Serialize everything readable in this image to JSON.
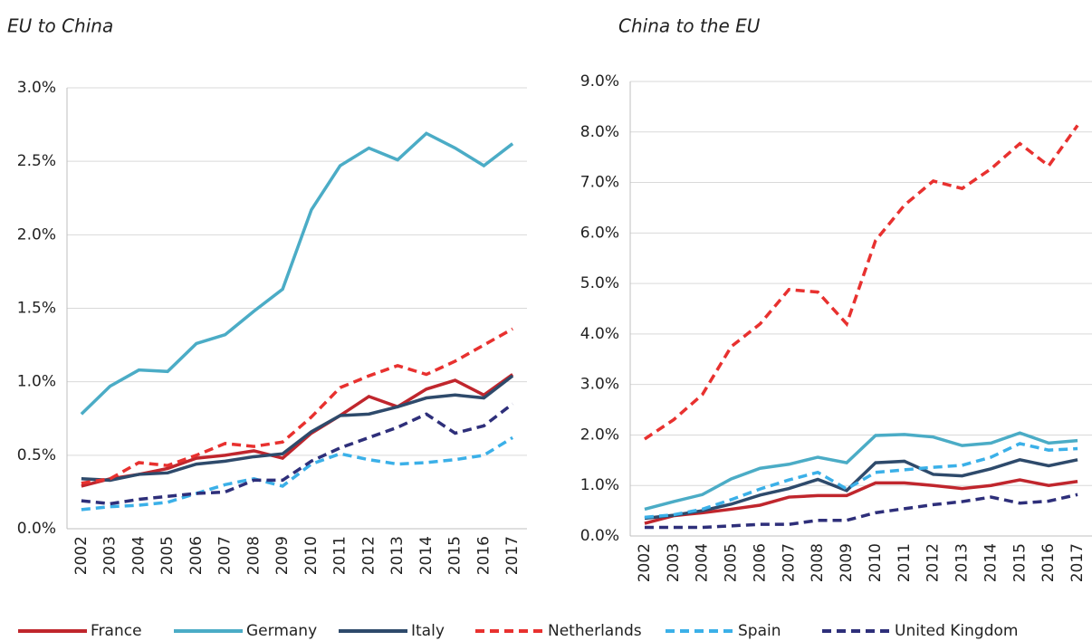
{
  "chart_data": [
    {
      "type": "line",
      "title": "EU to China",
      "categories": [
        "2002",
        "2003",
        "2004",
        "2005",
        "2006",
        "2007",
        "2008",
        "2009",
        "2010",
        "2011",
        "2012",
        "2013",
        "2014",
        "2015",
        "2016",
        "2017"
      ],
      "ylim": [
        0,
        3.0
      ],
      "yticks": [
        {
          "value": 0,
          "label": "0.0%"
        },
        {
          "value": 0.5,
          "label": "0.5%"
        },
        {
          "value": 1.0,
          "label": "1.0%"
        },
        {
          "value": 1.5,
          "label": "1.5%"
        },
        {
          "value": 2.0,
          "label": "2.0%"
        },
        {
          "value": 2.5,
          "label": "2.5%"
        },
        {
          "value": 3.0,
          "label": "3.0%"
        }
      ],
      "grid": true,
      "series": [
        {
          "name": "France",
          "color": "#c0262d",
          "dashed": false,
          "values": [
            0.29,
            0.34,
            0.37,
            0.41,
            0.48,
            0.5,
            0.53,
            0.48,
            0.65,
            0.77,
            0.9,
            0.83,
            0.95,
            1.01,
            0.91,
            1.05
          ]
        },
        {
          "name": "Germany",
          "color": "#4bacc6",
          "dashed": false,
          "values": [
            0.78,
            0.97,
            1.08,
            1.07,
            1.26,
            1.32,
            1.48,
            1.63,
            2.17,
            2.47,
            2.59,
            2.51,
            2.69,
            2.59,
            2.47,
            2.62
          ]
        },
        {
          "name": "Italy",
          "color": "#2e4a6b",
          "dashed": false,
          "values": [
            0.34,
            0.33,
            0.37,
            0.38,
            0.44,
            0.46,
            0.49,
            0.51,
            0.66,
            0.77,
            0.78,
            0.83,
            0.89,
            0.91,
            0.89,
            1.04
          ]
        },
        {
          "name": "Netherlands",
          "color": "#e8312f",
          "dashed": true,
          "values": [
            0.31,
            0.34,
            0.45,
            0.43,
            0.5,
            0.58,
            0.56,
            0.59,
            0.76,
            0.96,
            1.04,
            1.11,
            1.05,
            1.14,
            1.25,
            1.36
          ]
        },
        {
          "name": "Spain",
          "color": "#3bb0e8",
          "dashed": true,
          "values": [
            0.13,
            0.15,
            0.16,
            0.18,
            0.24,
            0.3,
            0.34,
            0.29,
            0.44,
            0.51,
            0.47,
            0.44,
            0.45,
            0.47,
            0.5,
            0.62
          ]
        },
        {
          "name": "United Kingdom",
          "color": "#2e2f7a",
          "dashed": true,
          "values": [
            0.19,
            0.17,
            0.2,
            0.22,
            0.24,
            0.25,
            0.33,
            0.33,
            0.46,
            0.55,
            0.62,
            0.69,
            0.78,
            0.65,
            0.7,
            0.85
          ]
        }
      ]
    },
    {
      "type": "line",
      "title": "China to the EU",
      "categories": [
        "2002",
        "2003",
        "2004",
        "2005",
        "2006",
        "2007",
        "2008",
        "2009",
        "2010",
        "2011",
        "2012",
        "2013",
        "2014",
        "2015",
        "2016",
        "2017"
      ],
      "ylim": [
        0,
        9.0
      ],
      "yticks": [
        {
          "value": 0,
          "label": "0.0%"
        },
        {
          "value": 1,
          "label": "1.0%"
        },
        {
          "value": 2,
          "label": "2.0%"
        },
        {
          "value": 3,
          "label": "3.0%"
        },
        {
          "value": 4,
          "label": "4.0%"
        },
        {
          "value": 5,
          "label": "5.0%"
        },
        {
          "value": 6,
          "label": "6.0%"
        },
        {
          "value": 7,
          "label": "7.0%"
        },
        {
          "value": 8,
          "label": "8.0%"
        },
        {
          "value": 9,
          "label": "9.0%"
        }
      ],
      "grid": true,
      "series": [
        {
          "name": "France",
          "color": "#c0262d",
          "dashed": false,
          "values": [
            0.25,
            0.4,
            0.46,
            0.53,
            0.61,
            0.77,
            0.8,
            0.8,
            1.05,
            1.05,
            1.0,
            0.94,
            1.0,
            1.11,
            1.0,
            1.08
          ]
        },
        {
          "name": "Germany",
          "color": "#4bacc6",
          "dashed": false,
          "values": [
            0.53,
            0.68,
            0.82,
            1.13,
            1.34,
            1.42,
            1.56,
            1.45,
            1.99,
            2.01,
            1.96,
            1.79,
            1.84,
            2.04,
            1.84,
            1.89
          ]
        },
        {
          "name": "Italy",
          "color": "#2e4a6b",
          "dashed": false,
          "values": [
            0.35,
            0.41,
            0.5,
            0.63,
            0.81,
            0.94,
            1.12,
            0.9,
            1.45,
            1.48,
            1.22,
            1.19,
            1.33,
            1.51,
            1.39,
            1.51
          ]
        },
        {
          "name": "Netherlands",
          "color": "#e8312f",
          "dashed": true,
          "values": [
            1.92,
            2.3,
            2.8,
            3.75,
            4.2,
            4.88,
            4.83,
            4.2,
            5.85,
            6.55,
            7.03,
            6.88,
            7.27,
            7.77,
            7.33,
            8.13
          ]
        },
        {
          "name": "Spain",
          "color": "#3bb0e8",
          "dashed": true,
          "values": [
            0.37,
            0.42,
            0.53,
            0.72,
            0.93,
            1.11,
            1.26,
            0.93,
            1.26,
            1.31,
            1.36,
            1.4,
            1.56,
            1.83,
            1.7,
            1.73
          ]
        },
        {
          "name": "United Kingdom",
          "color": "#2e2f7a",
          "dashed": true,
          "values": [
            0.17,
            0.17,
            0.17,
            0.2,
            0.23,
            0.23,
            0.31,
            0.31,
            0.46,
            0.54,
            0.62,
            0.68,
            0.77,
            0.65,
            0.69,
            0.82
          ]
        }
      ]
    }
  ]
}
